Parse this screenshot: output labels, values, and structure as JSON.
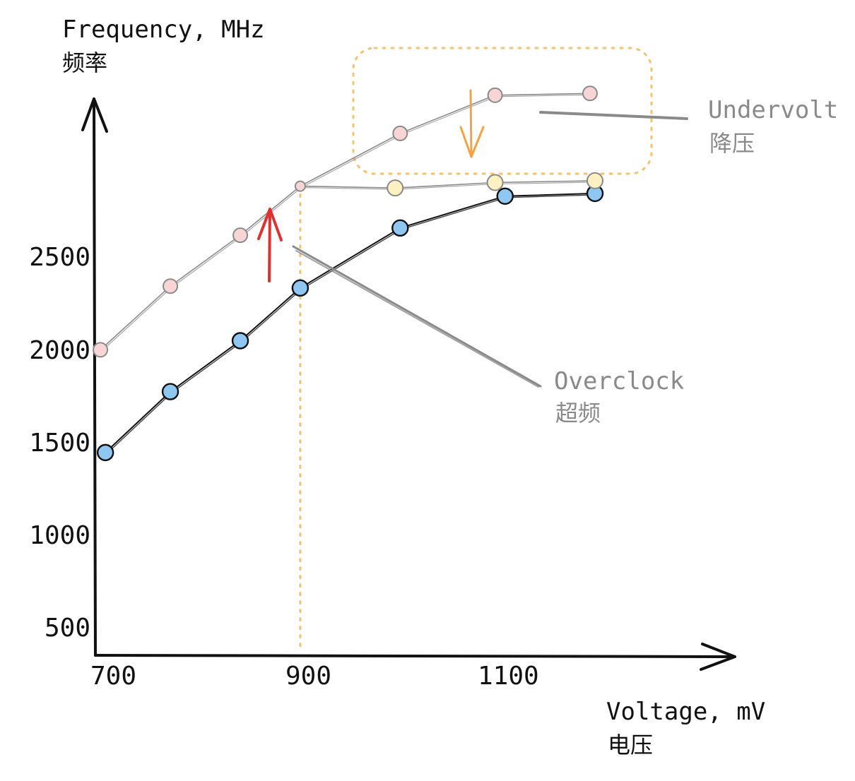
{
  "chart_data": {
    "type": "line",
    "title": "",
    "ylabel": "Frequency, MHz",
    "ylabel_cn": "频率",
    "xlabel": "Voltage, mV",
    "xlabel_cn": "电压",
    "xlim": [
      700,
      1340
    ],
    "ylim": [
      380,
      3440
    ],
    "x_ticks": [
      700,
      900,
      1100
    ],
    "y_ticks": [
      500,
      1000,
      1500,
      2000,
      2500
    ],
    "grid": false,
    "legend": "none",
    "series": [
      {
        "style": "black",
        "color": "#8ec8f2",
        "stroke": "#111111",
        "points": [
          [
            710,
            1495
          ],
          [
            775,
            1830
          ],
          [
            845,
            2110
          ],
          [
            905,
            2400
          ],
          [
            1005,
            2730
          ],
          [
            1110,
            2905
          ],
          [
            1200,
            2920
          ]
        ]
      },
      {
        "style": "gray",
        "color": "#f7d5d5",
        "stroke": "#8a8a8a",
        "points": [
          [
            705,
            2060
          ],
          [
            775,
            2410
          ],
          [
            845,
            2690
          ],
          [
            905,
            2960
          ],
          [
            1005,
            3250
          ],
          [
            1100,
            3460
          ],
          [
            1195,
            3470
          ]
        ]
      },
      {
        "style": "gray",
        "color": "#fdf1c2",
        "stroke": "#8a8a8a",
        "points": [
          [
            905,
            2960
          ],
          [
            1000,
            2950
          ],
          [
            1100,
            2980
          ],
          [
            1200,
            2990
          ]
        ]
      }
    ],
    "annotations": [
      {
        "text": "Undervolt",
        "text_cn": "降压"
      },
      {
        "text": "Overclock",
        "text_cn": "超频"
      }
    ],
    "reference_x": 905,
    "colors": {
      "axis": "#111111",
      "overclock_arrow": "#e03131",
      "undervolt_arrow": "#f4a340",
      "highlight": "#f6c26b",
      "note": "#8a8a8a"
    }
  }
}
